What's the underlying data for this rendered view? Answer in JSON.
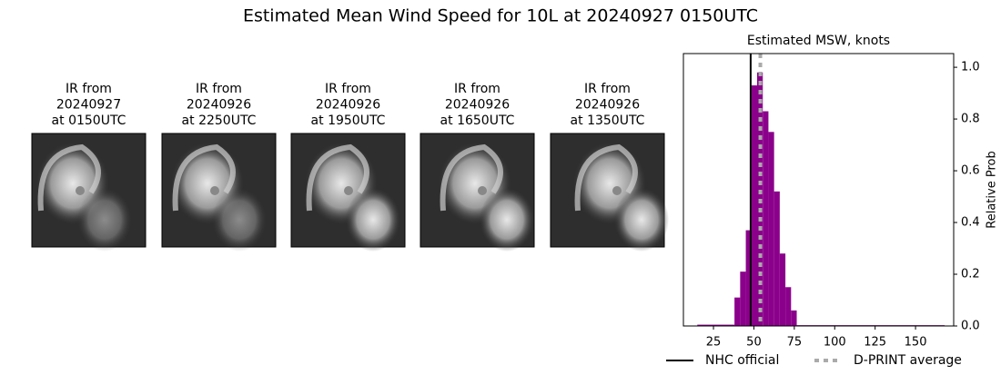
{
  "title": "Estimated Mean Wind Speed for 10L at 20240927 0150UTC",
  "panels": [
    {
      "label": [
        "IR from",
        "20240927",
        "at 0150UTC"
      ]
    },
    {
      "label": [
        "IR from",
        "20240926",
        "at 2250UTC"
      ]
    },
    {
      "label": [
        "IR from",
        "20240926",
        "at 1950UTC"
      ]
    },
    {
      "label": [
        "IR from",
        "20240926",
        "at 1650UTC"
      ]
    },
    {
      "label": [
        "IR from",
        "20240926",
        "at 1350UTC"
      ]
    }
  ],
  "chart_data": {
    "type": "histogram",
    "title": "Estimated MSW, knots",
    "ylabel": "Relative Prob",
    "color": "#8b008b",
    "bins": [
      15,
      38,
      41.5,
      45,
      48.5,
      52,
      55.5,
      59,
      62.5,
      66,
      69.5,
      73,
      76.5,
      168
    ],
    "counts": [
      0.005,
      0.11,
      0.21,
      0.37,
      0.93,
      0.98,
      0.83,
      0.75,
      0.52,
      0.28,
      0.15,
      0.06,
      0.003
    ],
    "xlim": [
      6.4,
      173.6
    ],
    "ylim": [
      0,
      1.053
    ],
    "xticks": [
      25,
      50,
      75,
      100,
      125,
      150
    ],
    "yticks": [
      {
        "value": 0,
        "label": "0.0"
      },
      0.2,
      0.4,
      0.6,
      0.8,
      {
        "value": 1,
        "label": "1.0"
      }
    ],
    "lines": [
      {
        "name": "NHC official",
        "value": 48,
        "color": "#000000",
        "style": "solid"
      },
      {
        "name": "D-PRINT average",
        "value": 54,
        "color": "#aaaaaa",
        "style": "dotted"
      }
    ]
  }
}
